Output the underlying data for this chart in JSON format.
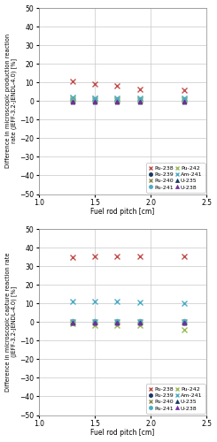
{
  "pitch": [
    1.3,
    1.5,
    1.7,
    1.9,
    2.3
  ],
  "top": {
    "Pu-238": [
      10.5,
      9.0,
      8.0,
      6.5,
      6.0
    ],
    "Pu-239": [
      0.5,
      0.5,
      0.5,
      0.5,
      0.5
    ],
    "Pu-240": [
      0.5,
      0.5,
      0.5,
      0.5,
      0.5
    ],
    "Pu-241": [
      1.0,
      1.0,
      1.0,
      1.0,
      1.0
    ],
    "Pu-242": [
      1.5,
      1.5,
      1.0,
      1.0,
      1.0
    ],
    "Am-241": [
      2.0,
      1.5,
      1.5,
      1.5,
      1.5
    ],
    "U-235": [
      -0.5,
      -0.5,
      -0.5,
      -0.5,
      -0.5
    ],
    "U-238": [
      -0.5,
      -0.5,
      -0.5,
      -0.5,
      -0.5
    ]
  },
  "bottom": {
    "Pu-238": [
      35.0,
      35.5,
      35.5,
      35.5,
      35.5
    ],
    "Pu-239": [
      -0.5,
      -0.5,
      -0.5,
      -0.5,
      -0.5
    ],
    "Pu-240": [
      0.0,
      0.0,
      0.0,
      0.0,
      0.0
    ],
    "Pu-241": [
      0.5,
      0.5,
      0.5,
      0.5,
      0.5
    ],
    "Pu-242": [
      -1.0,
      -2.0,
      -2.0,
      -2.0,
      -4.0
    ],
    "Am-241": [
      11.0,
      11.0,
      11.0,
      10.5,
      10.0
    ],
    "U-235": [
      -0.5,
      -0.5,
      -0.5,
      -0.5,
      -0.5
    ],
    "U-238": [
      -0.5,
      -0.5,
      -0.5,
      -0.5,
      -0.5
    ]
  },
  "series_styles": {
    "Pu-238": {
      "color": "#c0504d",
      "marker": "x",
      "ms": 4,
      "mew": 1.0
    },
    "Pu-239": {
      "color": "#17375e",
      "marker": "o",
      "ms": 3.5,
      "mew": 0.5
    },
    "Pu-240": {
      "color": "#938953",
      "marker": "x",
      "ms": 4,
      "mew": 1.0
    },
    "Pu-241": {
      "color": "#4bacc6",
      "marker": "o",
      "ms": 3.5,
      "mew": 0.5
    },
    "Pu-242": {
      "color": "#9bbb59",
      "marker": "x",
      "ms": 4,
      "mew": 1.0
    },
    "Am-241": {
      "color": "#4bacc6",
      "marker": "x",
      "ms": 4,
      "mew": 1.0
    },
    "U-235": {
      "color": "#17375e",
      "marker": "^",
      "ms": 3.5,
      "mew": 0.5
    },
    "U-238": {
      "color": "#7030a0",
      "marker": "^",
      "ms": 3.5,
      "mew": 0.5
    }
  },
  "legend_order": [
    "Pu-238",
    "Pu-239",
    "Pu-240",
    "Pu-241",
    "Pu-242",
    "Am-241",
    "U-235",
    "U-238"
  ],
  "ylim": [
    -50,
    50
  ],
  "yticks": [
    -50,
    -40,
    -30,
    -20,
    -10,
    0,
    10,
    20,
    30,
    40,
    50
  ],
  "xlim": [
    1.0,
    2.5
  ],
  "xticks": [
    1.0,
    1.5,
    2.0,
    2.5
  ],
  "ylabel_top": "Difference in microscopic production reaction\nrate (JEFF-3.2-JENDL-4.0) [%]",
  "ylabel_bottom": "Difference in microscopic capture reaction rate\n(JEFF-3.2-JENDL-4.0) [%]",
  "xlabel": "Fuel rod pitch [cm]",
  "grid_color": "#c8c8c8",
  "bg_color": "#ffffff"
}
